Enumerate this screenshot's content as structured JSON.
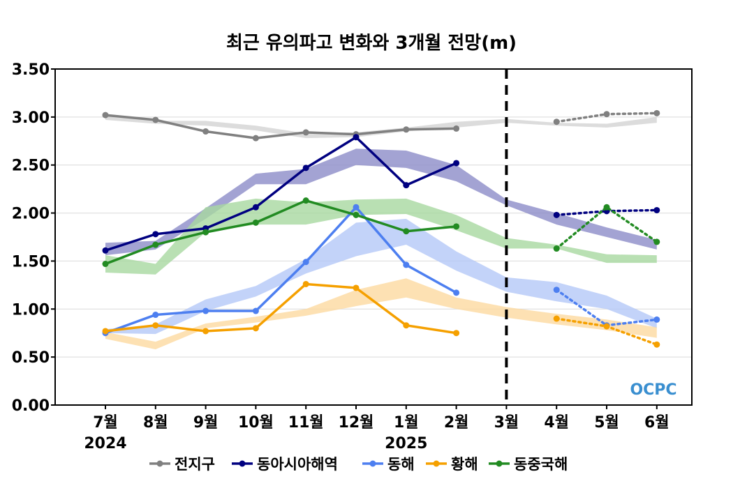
{
  "chart_data": {
    "type": "line",
    "title": "최근 유의파고 변화와 3개월 전망(m)",
    "ylim": [
      0,
      3.5
    ],
    "yticks": [
      "0.00",
      "0.50",
      "1.00",
      "1.50",
      "2.00",
      "2.50",
      "3.00",
      "3.50"
    ],
    "categories": [
      "7월",
      "8월",
      "9월",
      "10월",
      "11월",
      "12월",
      "1월",
      "2월",
      "3월",
      "4월",
      "5월",
      "6월"
    ],
    "year_labels": [
      {
        "text": "2024",
        "category": "7월"
      },
      {
        "text": "2025",
        "category": "1월"
      }
    ],
    "forecast_divider_at": "3월",
    "grid": true,
    "legend_position": "bottom",
    "logo_text": "OCPC",
    "series": [
      {
        "name": "전지구",
        "color": "#808080",
        "observed": [
          3.02,
          2.97,
          2.85,
          2.78,
          2.84,
          2.82,
          2.87,
          2.88,
          null,
          null,
          null,
          null
        ],
        "forecast": [
          null,
          null,
          null,
          null,
          null,
          null,
          null,
          null,
          null,
          2.95,
          3.03,
          3.04
        ],
        "band_color": "#d3d3d3",
        "band_low": [
          2.97,
          2.93,
          2.91,
          2.86,
          2.78,
          2.79,
          2.85,
          2.89,
          2.94,
          2.91,
          2.89,
          2.94
        ],
        "band_high": [
          3.01,
          2.96,
          2.96,
          2.91,
          2.83,
          2.84,
          2.89,
          2.95,
          2.98,
          2.94,
          2.93,
          3.0
        ]
      },
      {
        "name": "동아시아해역",
        "color": "#000080",
        "observed": [
          1.61,
          1.78,
          1.84,
          2.06,
          2.47,
          2.79,
          2.29,
          2.52,
          null,
          null,
          null,
          null
        ],
        "forecast": [
          null,
          null,
          null,
          null,
          null,
          null,
          null,
          null,
          null,
          1.98,
          2.02,
          2.03
        ],
        "band_color": "#8c8cc8",
        "band_low": [
          1.56,
          1.62,
          1.94,
          2.3,
          2.3,
          2.5,
          2.47,
          2.33,
          2.08,
          1.88,
          1.75,
          1.62
        ],
        "band_high": [
          1.69,
          1.71,
          2.05,
          2.41,
          2.46,
          2.67,
          2.65,
          2.5,
          2.14,
          2.0,
          1.85,
          1.72
        ]
      },
      {
        "name": "동해",
        "color": "#4d7ff0",
        "observed": [
          0.75,
          0.94,
          0.98,
          0.98,
          1.49,
          2.06,
          1.46,
          1.17,
          null,
          null,
          null,
          null
        ],
        "forecast": [
          null,
          null,
          null,
          null,
          null,
          null,
          null,
          null,
          null,
          1.2,
          0.83,
          0.89
        ],
        "band_color": "#b4c8f8",
        "band_low": [
          0.75,
          0.74,
          0.98,
          1.13,
          1.37,
          1.55,
          1.67,
          1.4,
          1.18,
          1.08,
          1.0,
          0.8
        ],
        "band_high": [
          0.79,
          0.84,
          1.1,
          1.24,
          1.52,
          1.9,
          1.94,
          1.6,
          1.33,
          1.28,
          1.14,
          0.9
        ]
      },
      {
        "name": "황해",
        "color": "#f5a000",
        "observed": [
          0.77,
          0.83,
          0.77,
          0.8,
          1.26,
          1.22,
          0.83,
          0.75,
          null,
          null,
          null,
          null
        ],
        "forecast": [
          null,
          null,
          null,
          null,
          null,
          null,
          null,
          null,
          null,
          0.9,
          0.82,
          0.63
        ],
        "band_color": "#fcd9a0",
        "band_low": [
          0.69,
          0.58,
          0.8,
          0.86,
          0.93,
          1.03,
          1.12,
          1.0,
          0.91,
          0.84,
          0.78,
          0.7
        ],
        "band_high": [
          0.76,
          0.66,
          0.85,
          0.92,
          1.0,
          1.2,
          1.32,
          1.12,
          1.02,
          0.95,
          0.89,
          0.81
        ]
      },
      {
        "name": "동중국해",
        "color": "#228b22",
        "observed": [
          1.47,
          1.67,
          1.8,
          1.9,
          2.13,
          1.98,
          1.81,
          1.86,
          null,
          null,
          null,
          null
        ],
        "forecast": [
          null,
          null,
          null,
          null,
          null,
          null,
          null,
          null,
          null,
          1.63,
          2.06,
          1.7
        ],
        "band_color": "#a8d8a0",
        "band_low": [
          1.38,
          1.36,
          1.8,
          1.88,
          1.88,
          1.98,
          1.99,
          1.82,
          1.63,
          1.63,
          1.48,
          1.48
        ],
        "band_high": [
          1.56,
          1.47,
          2.06,
          2.15,
          2.11,
          2.14,
          2.15,
          1.98,
          1.74,
          1.67,
          1.57,
          1.56
        ]
      }
    ]
  }
}
